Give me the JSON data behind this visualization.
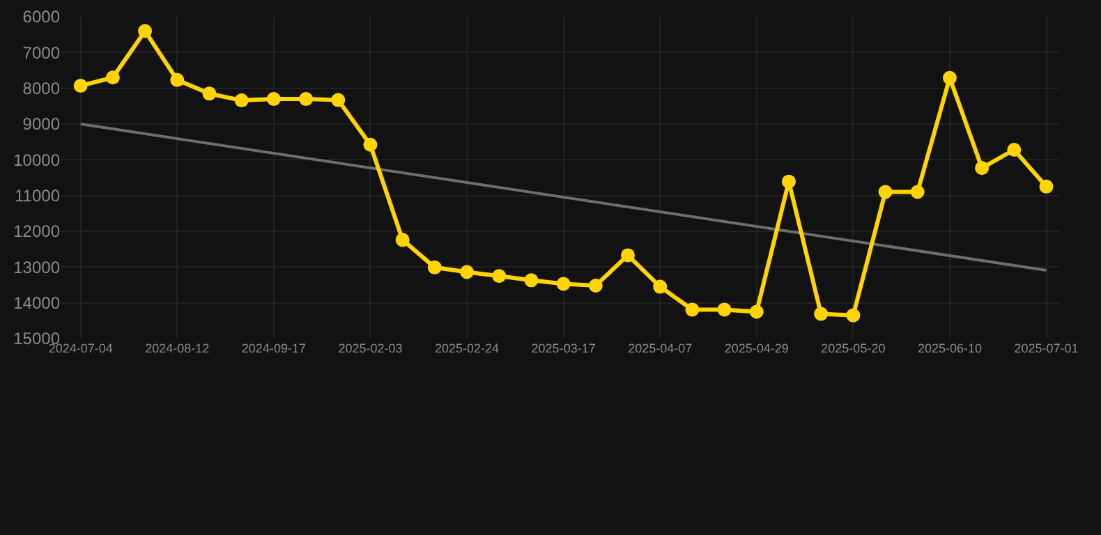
{
  "chart_data": {
    "type": "line",
    "categories": [
      "2024-07-04",
      null,
      null,
      "2024-08-12",
      null,
      null,
      "2024-09-17",
      null,
      null,
      "2025-02-03",
      null,
      null,
      "2025-02-24",
      null,
      null,
      "2025-03-17",
      null,
      null,
      "2025-04-07",
      null,
      null,
      "2025-04-29",
      null,
      null,
      "2025-05-20",
      null,
      null,
      "2025-06-10",
      null,
      null,
      "2025-07-01"
    ],
    "series": [
      {
        "color": "#ffd400",
        "marker": "circle",
        "values": [
          7930,
          7700,
          6400,
          7770,
          8150,
          8340,
          8300,
          8300,
          8330,
          9580,
          12240,
          13010,
          13140,
          13250,
          13370,
          13470,
          13520,
          12670,
          13550,
          14190,
          14190,
          14250,
          10610,
          14310,
          14350,
          10900,
          10900,
          7710,
          10230,
          9720,
          10750
        ]
      },
      {
        "type": "line",
        "color": "#6e6e6e",
        "marker": "none",
        "values": [
          9000,
          null,
          null,
          null,
          null,
          null,
          null,
          null,
          null,
          null,
          null,
          null,
          null,
          null,
          null,
          null,
          null,
          null,
          null,
          null,
          null,
          null,
          null,
          null,
          null,
          null,
          null,
          null,
          null,
          null,
          13090
        ]
      }
    ],
    "ylim": [
      15000,
      6000
    ],
    "yticks": [
      6000,
      7000,
      8000,
      9000,
      10000,
      11000,
      12000,
      13000,
      14000,
      15000
    ],
    "grid": true
  }
}
